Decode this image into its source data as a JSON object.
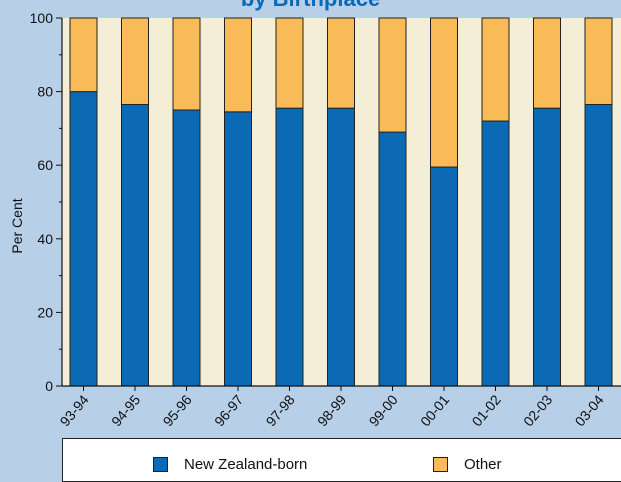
{
  "chart_data": {
    "type": "bar",
    "stacked": true,
    "title": "by Birthplace",
    "ylabel": "Per Cent",
    "xlabel": "",
    "ylim": [
      0,
      100
    ],
    "yticks": [
      0,
      20,
      40,
      60,
      80,
      100
    ],
    "grid": false,
    "legend_position": "bottom",
    "categories": [
      "93-94",
      "94-95",
      "95-96",
      "96-97",
      "97-98",
      "98-99",
      "99-00",
      "00-01",
      "01-02",
      "02-03",
      "03-04"
    ],
    "series": [
      {
        "name": "New Zealand-born",
        "color": "#0b6ab3",
        "values": [
          80,
          76.5,
          75,
          74.5,
          75.5,
          75.5,
          69,
          59.5,
          72,
          75.5,
          76.5
        ]
      },
      {
        "name": "Other",
        "color": "#f8bb57",
        "values": [
          20,
          23.5,
          25,
          25.5,
          24.5,
          24.5,
          31,
          40.5,
          28,
          24.5,
          23.5
        ]
      }
    ],
    "colors": {
      "background": "#b8cfe8",
      "plot_band": "#f5eed7",
      "bar_outline": "#222222",
      "title": "#0a6ab8"
    }
  }
}
